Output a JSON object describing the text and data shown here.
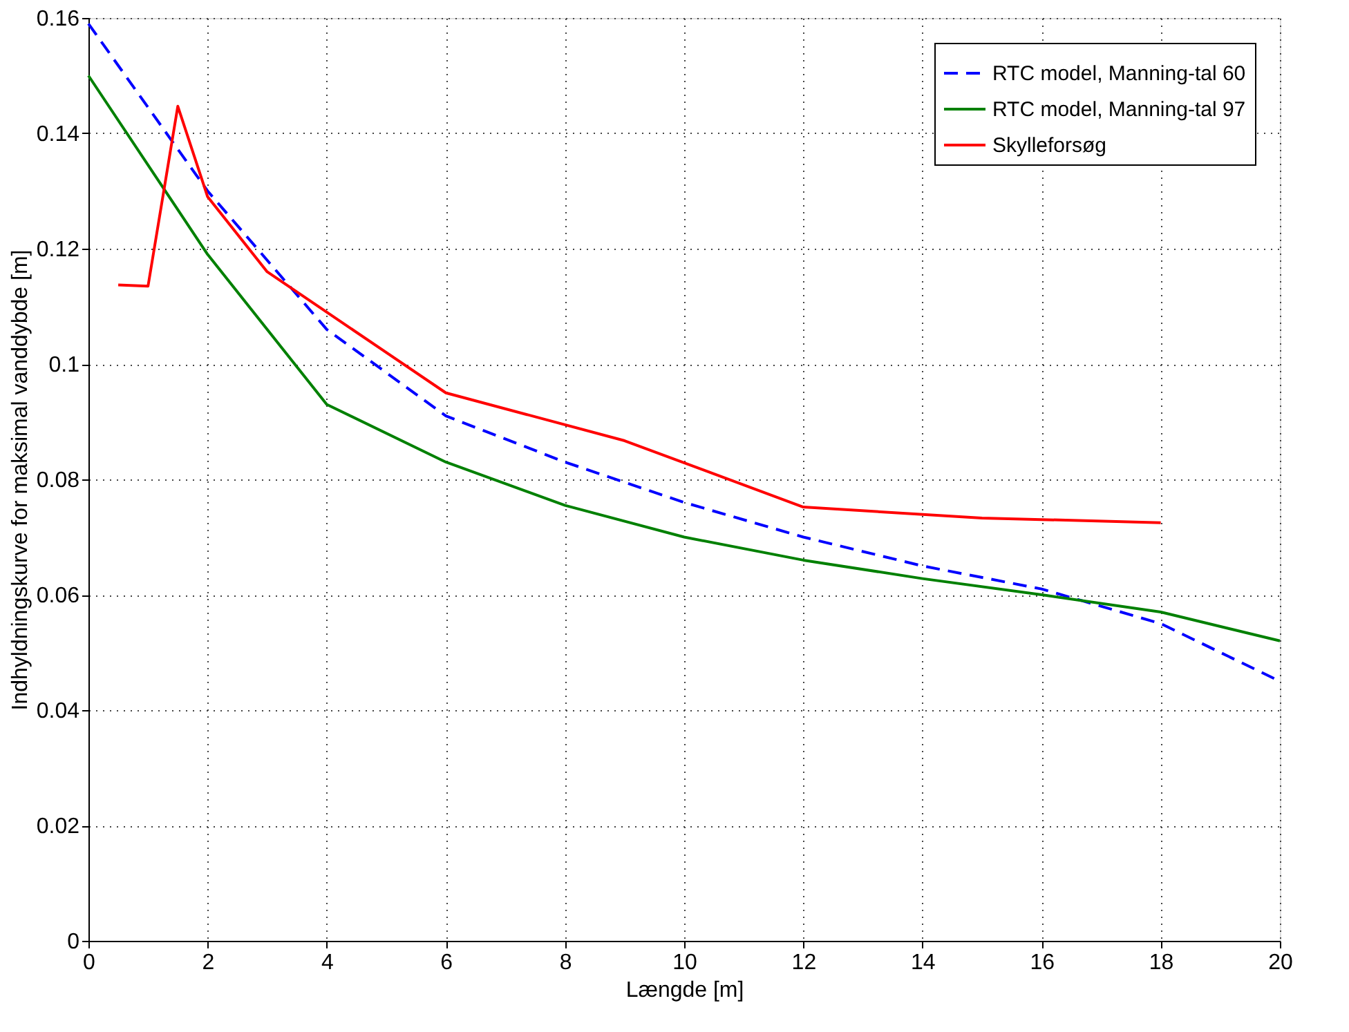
{
  "chart_data": {
    "type": "line",
    "xlabel": "Længde [m]",
    "ylabel": "Indhyldningskurve for maksimal vanddybde [m]",
    "xlim": [
      0,
      20
    ],
    "xticks": [
      0,
      2,
      4,
      6,
      8,
      10,
      12,
      14,
      16,
      18,
      20
    ],
    "ylim": [
      0,
      0.16
    ],
    "yticks": [
      0,
      0.02,
      0.04,
      0.06,
      0.08,
      0.1,
      0.12,
      0.14,
      0.16
    ],
    "grid": true,
    "legend": "top right",
    "marker": "none",
    "series": [
      {
        "name": "RTC model, Manning-tal 60",
        "color": "#0000ff",
        "line_style": "dashed",
        "x": [
          0,
          2,
          4,
          6,
          8,
          10,
          12,
          14,
          16,
          18,
          20
        ],
        "values": [
          0.159,
          0.13,
          0.106,
          0.091,
          0.083,
          0.076,
          0.07,
          0.065,
          0.061,
          0.055,
          0.045
        ]
      },
      {
        "name": "RTC model, Manning-tal 97",
        "color": "#008000",
        "line_style": "solid",
        "x": [
          0,
          2,
          4,
          6,
          8,
          10,
          12,
          14,
          16,
          18,
          20
        ],
        "values": [
          0.15,
          0.119,
          0.093,
          0.083,
          0.0755,
          0.07,
          0.066,
          0.0628,
          0.06,
          0.057,
          0.052
        ]
      },
      {
        "name": "Skylleforsøg",
        "color": "#ff0000",
        "line_style": "solid",
        "x": [
          0.5,
          1,
          1.5,
          2,
          3,
          4,
          6,
          9,
          12,
          15,
          18
        ],
        "values": [
          0.1137,
          0.1135,
          0.1447,
          0.129,
          0.116,
          0.109,
          0.095,
          0.0867,
          0.0752,
          0.0733,
          0.0725
        ]
      }
    ]
  }
}
